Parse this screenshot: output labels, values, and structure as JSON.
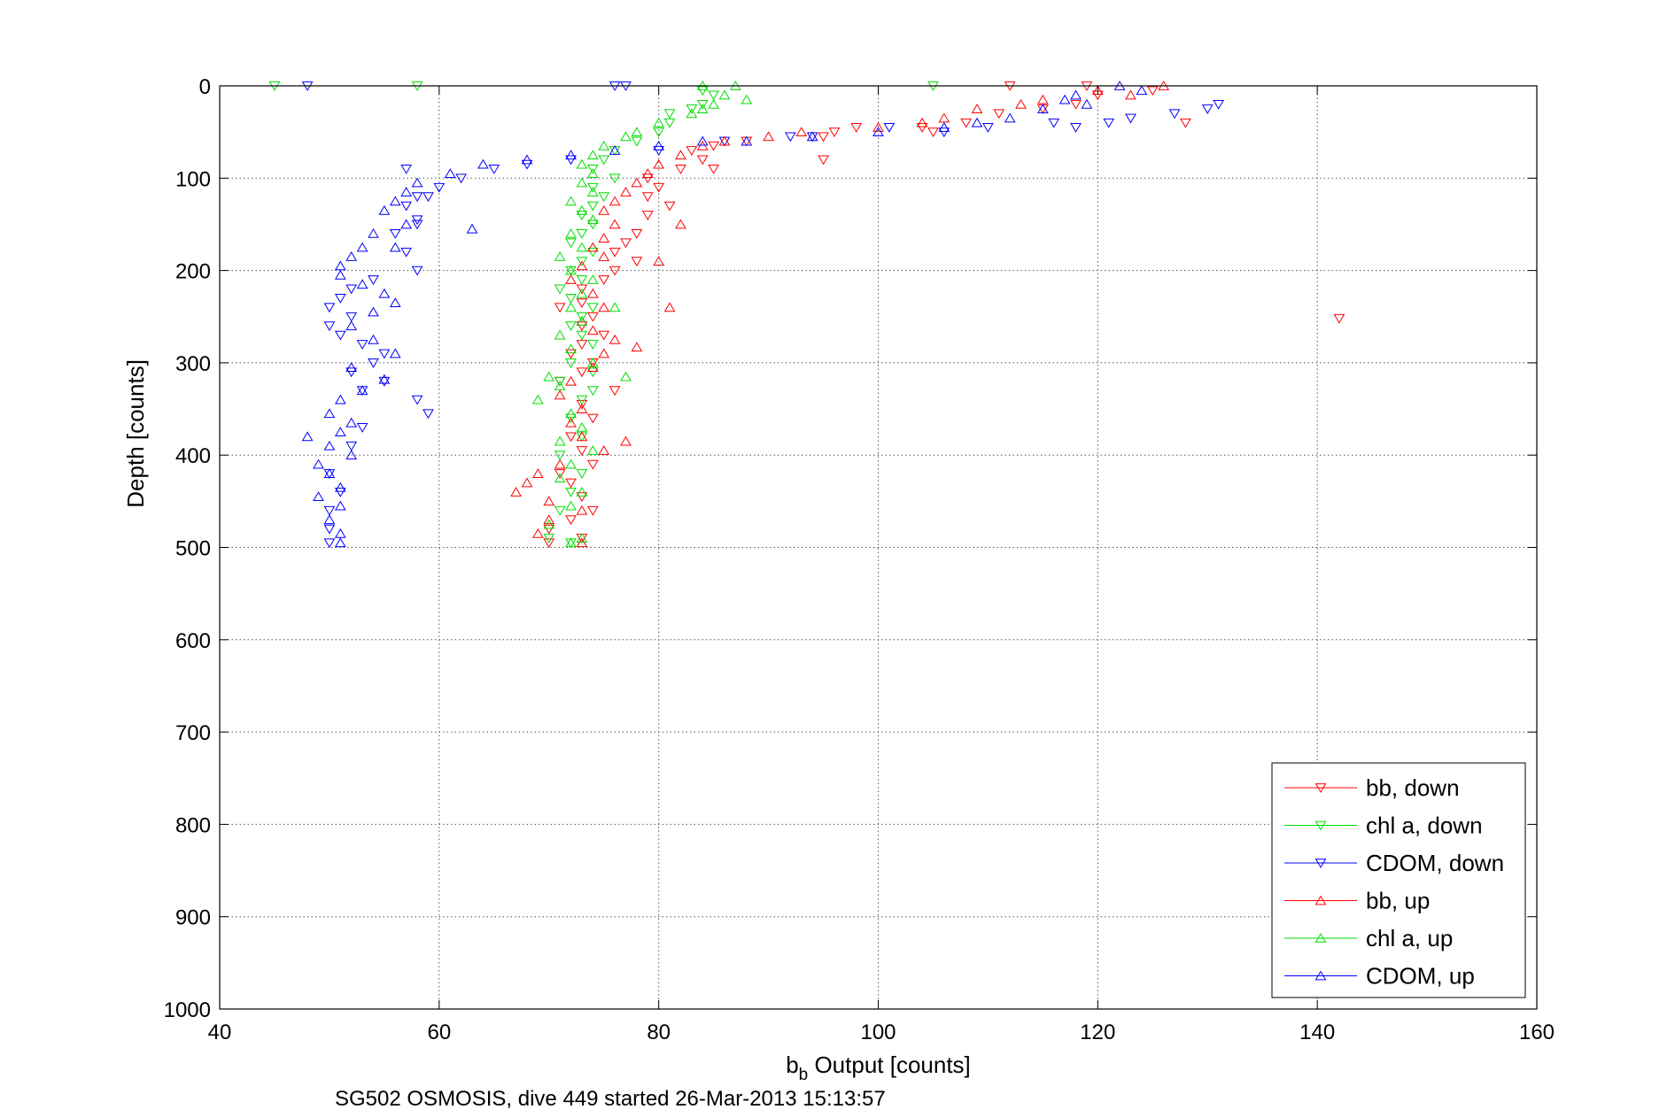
{
  "chart_data": {
    "type": "scatter",
    "xlabel": "Output [counts]",
    "xlabel_prefix": "b",
    "xlabel_subscript": "b",
    "ylabel": "Depth [counts]",
    "footer": "SG502 OSMOSIS, dive 449 started 26-Mar-2013 15:13:57",
    "xlim": [
      40,
      160
    ],
    "ylim": [
      0,
      1000
    ],
    "y_reversed": true,
    "grid": true,
    "legend_position": "bottom-right",
    "xticks": [
      40,
      60,
      80,
      100,
      120,
      140,
      160
    ],
    "yticks": [
      0,
      100,
      200,
      300,
      400,
      500,
      600,
      700,
      800,
      900,
      1000
    ],
    "series": [
      {
        "name": "bb, down",
        "color": "#ff0000",
        "marker": "triangle-down",
        "points": [
          [
            112,
            0
          ],
          [
            119,
            0
          ],
          [
            120,
            10
          ],
          [
            125,
            5
          ],
          [
            118,
            20
          ],
          [
            115,
            25
          ],
          [
            111,
            30
          ],
          [
            108,
            40
          ],
          [
            104,
            45
          ],
          [
            105,
            50
          ],
          [
            98,
            45
          ],
          [
            96,
            50
          ],
          [
            95,
            55
          ],
          [
            95,
            80
          ],
          [
            88,
            60
          ],
          [
            85,
            65
          ],
          [
            83,
            70
          ],
          [
            84,
            80
          ],
          [
            85,
            90
          ],
          [
            82,
            90
          ],
          [
            79,
            100
          ],
          [
            80,
            110
          ],
          [
            79,
            120
          ],
          [
            81,
            130
          ],
          [
            79,
            140
          ],
          [
            78,
            160
          ],
          [
            77,
            170
          ],
          [
            76,
            180
          ],
          [
            78,
            190
          ],
          [
            76,
            200
          ],
          [
            75,
            210
          ],
          [
            73,
            220
          ],
          [
            73,
            235
          ],
          [
            71,
            240
          ],
          [
            74,
            250
          ],
          [
            73,
            260
          ],
          [
            75,
            270
          ],
          [
            73,
            280
          ],
          [
            72,
            290
          ],
          [
            74,
            300
          ],
          [
            73,
            310
          ],
          [
            71,
            320
          ],
          [
            76,
            330
          ],
          [
            73,
            345
          ],
          [
            74,
            360
          ],
          [
            72,
            380
          ],
          [
            73,
            395
          ],
          [
            74,
            410
          ],
          [
            71,
            420
          ],
          [
            72,
            430
          ],
          [
            73,
            445
          ],
          [
            74,
            460
          ],
          [
            72,
            470
          ],
          [
            70,
            480
          ],
          [
            73,
            490
          ],
          [
            70,
            495
          ],
          [
            142,
            252
          ],
          [
            128,
            40
          ]
        ]
      },
      {
        "name": "chl a, down",
        "color": "#00dd00",
        "marker": "triangle-down",
        "points": [
          [
            45,
            0
          ],
          [
            58,
            0
          ],
          [
            105,
            0
          ],
          [
            84,
            5
          ],
          [
            85,
            10
          ],
          [
            84,
            20
          ],
          [
            83,
            25
          ],
          [
            81,
            30
          ],
          [
            81,
            40
          ],
          [
            80,
            50
          ],
          [
            78,
            60
          ],
          [
            76,
            70
          ],
          [
            75,
            80
          ],
          [
            74,
            90
          ],
          [
            76,
            100
          ],
          [
            74,
            110
          ],
          [
            75,
            120
          ],
          [
            74,
            130
          ],
          [
            73,
            140
          ],
          [
            74,
            150
          ],
          [
            73,
            160
          ],
          [
            72,
            170
          ],
          [
            74,
            180
          ],
          [
            73,
            190
          ],
          [
            72,
            200
          ],
          [
            73,
            210
          ],
          [
            71,
            220
          ],
          [
            72,
            230
          ],
          [
            74,
            240
          ],
          [
            73,
            250
          ],
          [
            72,
            260
          ],
          [
            73,
            270
          ],
          [
            74,
            280
          ],
          [
            72,
            300
          ],
          [
            74,
            310
          ],
          [
            71,
            320
          ],
          [
            74,
            330
          ],
          [
            73,
            340
          ],
          [
            72,
            360
          ],
          [
            73,
            380
          ],
          [
            71,
            400
          ],
          [
            73,
            420
          ],
          [
            72,
            440
          ],
          [
            71,
            460
          ],
          [
            70,
            490
          ],
          [
            72,
            495
          ]
        ]
      },
      {
        "name": "CDOM, down",
        "color": "#0000ff",
        "marker": "triangle-down",
        "points": [
          [
            48,
            0
          ],
          [
            76,
            0
          ],
          [
            77,
            0
          ],
          [
            131,
            20
          ],
          [
            130,
            25
          ],
          [
            127,
            30
          ],
          [
            123,
            35
          ],
          [
            121,
            40
          ],
          [
            118,
            45
          ],
          [
            116,
            40
          ],
          [
            110,
            45
          ],
          [
            106,
            50
          ],
          [
            101,
            45
          ],
          [
            94,
            55
          ],
          [
            92,
            55
          ],
          [
            86,
            60
          ],
          [
            80,
            70
          ],
          [
            72,
            80
          ],
          [
            68,
            85
          ],
          [
            65,
            90
          ],
          [
            62,
            100
          ],
          [
            60,
            110
          ],
          [
            58,
            120
          ],
          [
            57,
            130
          ],
          [
            58,
            145
          ],
          [
            56,
            160
          ],
          [
            57,
            180
          ],
          [
            58,
            200
          ],
          [
            54,
            210
          ],
          [
            52,
            220
          ],
          [
            51,
            230
          ],
          [
            50,
            240
          ],
          [
            52,
            250
          ],
          [
            50,
            260
          ],
          [
            51,
            270
          ],
          [
            53,
            280
          ],
          [
            55,
            290
          ],
          [
            54,
            300
          ],
          [
            52,
            310
          ],
          [
            55,
            320
          ],
          [
            53,
            330
          ],
          [
            58,
            340
          ],
          [
            59,
            355
          ],
          [
            53,
            370
          ],
          [
            52,
            390
          ],
          [
            50,
            420
          ],
          [
            51,
            440
          ],
          [
            50,
            460
          ],
          [
            50,
            480
          ],
          [
            50,
            495
          ],
          [
            57,
            90
          ],
          [
            59,
            120
          ],
          [
            58,
            150
          ]
        ]
      },
      {
        "name": "bb, up",
        "color": "#ff0000",
        "marker": "triangle-up",
        "points": [
          [
            126,
            0
          ],
          [
            120,
            5
          ],
          [
            123,
            10
          ],
          [
            115,
            15
          ],
          [
            113,
            20
          ],
          [
            109,
            25
          ],
          [
            106,
            35
          ],
          [
            104,
            40
          ],
          [
            100,
            45
          ],
          [
            93,
            50
          ],
          [
            90,
            55
          ],
          [
            86,
            60
          ],
          [
            84,
            65
          ],
          [
            82,
            75
          ],
          [
            80,
            85
          ],
          [
            79,
            95
          ],
          [
            78,
            105
          ],
          [
            77,
            115
          ],
          [
            76,
            125
          ],
          [
            75,
            135
          ],
          [
            76,
            150
          ],
          [
            75,
            165
          ],
          [
            74,
            175
          ],
          [
            75,
            185
          ],
          [
            73,
            195
          ],
          [
            72,
            210
          ],
          [
            74,
            225
          ],
          [
            75,
            240
          ],
          [
            73,
            255
          ],
          [
            74,
            265
          ],
          [
            76,
            275
          ],
          [
            75,
            290
          ],
          [
            74,
            305
          ],
          [
            72,
            320
          ],
          [
            71,
            335
          ],
          [
            73,
            350
          ],
          [
            72,
            365
          ],
          [
            73,
            380
          ],
          [
            75,
            395
          ],
          [
            71,
            410
          ],
          [
            69,
            420
          ],
          [
            68,
            430
          ],
          [
            67,
            440
          ],
          [
            70,
            450
          ],
          [
            73,
            460
          ],
          [
            70,
            470
          ],
          [
            69,
            485
          ],
          [
            73,
            495
          ],
          [
            80,
            190
          ],
          [
            82,
            150
          ],
          [
            78,
            283
          ],
          [
            77,
            385
          ],
          [
            81,
            240
          ]
        ]
      },
      {
        "name": "chl a, up",
        "color": "#00dd00",
        "marker": "triangle-up",
        "points": [
          [
            84,
            0
          ],
          [
            87,
            0
          ],
          [
            86,
            10
          ],
          [
            88,
            15
          ],
          [
            85,
            20
          ],
          [
            84,
            25
          ],
          [
            83,
            30
          ],
          [
            80,
            40
          ],
          [
            78,
            50
          ],
          [
            77,
            55
          ],
          [
            75,
            65
          ],
          [
            74,
            75
          ],
          [
            73,
            85
          ],
          [
            74,
            95
          ],
          [
            73,
            105
          ],
          [
            74,
            115
          ],
          [
            72,
            125
          ],
          [
            73,
            135
          ],
          [
            74,
            145
          ],
          [
            72,
            160
          ],
          [
            73,
            175
          ],
          [
            71,
            185
          ],
          [
            72,
            200
          ],
          [
            74,
            210
          ],
          [
            73,
            225
          ],
          [
            72,
            240
          ],
          [
            73,
            255
          ],
          [
            71,
            270
          ],
          [
            72,
            285
          ],
          [
            74,
            300
          ],
          [
            70,
            315
          ],
          [
            71,
            325
          ],
          [
            69,
            340
          ],
          [
            72,
            355
          ],
          [
            73,
            370
          ],
          [
            71,
            385
          ],
          [
            74,
            395
          ],
          [
            72,
            410
          ],
          [
            71,
            425
          ],
          [
            73,
            440
          ],
          [
            72,
            455
          ],
          [
            70,
            475
          ],
          [
            73,
            490
          ],
          [
            72,
            495
          ],
          [
            77,
            315
          ],
          [
            76,
            240
          ]
        ]
      },
      {
        "name": "CDOM, up",
        "color": "#0000ff",
        "marker": "triangle-up",
        "points": [
          [
            122,
            0
          ],
          [
            124,
            5
          ],
          [
            118,
            10
          ],
          [
            117,
            15
          ],
          [
            119,
            20
          ],
          [
            115,
            25
          ],
          [
            112,
            35
          ],
          [
            109,
            40
          ],
          [
            106,
            45
          ],
          [
            100,
            50
          ],
          [
            94,
            55
          ],
          [
            88,
            60
          ],
          [
            84,
            60
          ],
          [
            80,
            65
          ],
          [
            76,
            70
          ],
          [
            72,
            75
          ],
          [
            68,
            80
          ],
          [
            64,
            85
          ],
          [
            61,
            95
          ],
          [
            58,
            105
          ],
          [
            57,
            115
          ],
          [
            56,
            125
          ],
          [
            55,
            135
          ],
          [
            57,
            150
          ],
          [
            54,
            160
          ],
          [
            53,
            175
          ],
          [
            52,
            185
          ],
          [
            51,
            195
          ],
          [
            51,
            205
          ],
          [
            53,
            215
          ],
          [
            55,
            225
          ],
          [
            56,
            235
          ],
          [
            54,
            245
          ],
          [
            52,
            260
          ],
          [
            54,
            275
          ],
          [
            56,
            290
          ],
          [
            52,
            305
          ],
          [
            55,
            318
          ],
          [
            53,
            330
          ],
          [
            51,
            340
          ],
          [
            50,
            355
          ],
          [
            52,
            365
          ],
          [
            51,
            375
          ],
          [
            48,
            380
          ],
          [
            50,
            390
          ],
          [
            52,
            400
          ],
          [
            49,
            410
          ],
          [
            50,
            420
          ],
          [
            51,
            435
          ],
          [
            49,
            445
          ],
          [
            51,
            455
          ],
          [
            50,
            470
          ],
          [
            51,
            485
          ],
          [
            51,
            495
          ],
          [
            63,
            155
          ],
          [
            56,
            175
          ]
        ]
      }
    ]
  }
}
